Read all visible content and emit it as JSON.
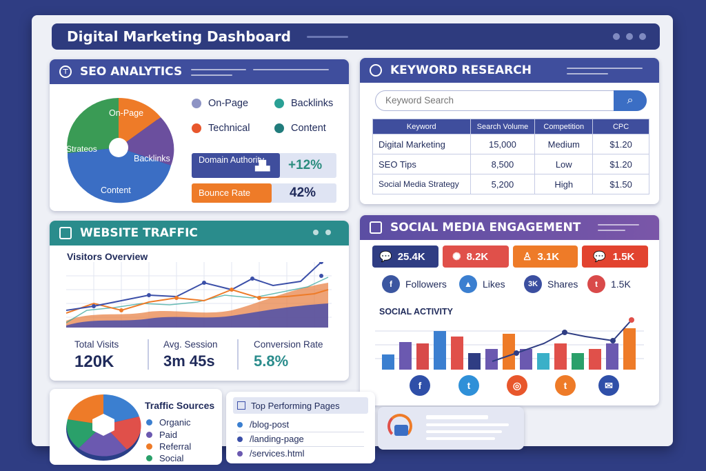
{
  "app": {
    "title": "Digital Marketing Dashboard"
  },
  "seo": {
    "title": "SEO ANALYTICS",
    "pie_labels": [
      "On-Page",
      "Strateos",
      "Backlinks",
      "Content"
    ],
    "legend": [
      {
        "label": "On-Page",
        "color": "#8d93c4"
      },
      {
        "label": "Backlinks",
        "color": "#2aa095"
      },
      {
        "label": "Technical",
        "color": "#e8572c"
      },
      {
        "label": "Content",
        "color": "#217c7c"
      }
    ],
    "domain_label": "Domain Authority",
    "domain_value": "+12%",
    "bounce_label": "Bounce Rate",
    "bounce_value": "42%"
  },
  "keyword": {
    "title": "KEYWORD RESEARCH",
    "search_placeholder": "Keyword Search",
    "headers": [
      "Keyword",
      "Search Volume",
      "Competition",
      "CPC"
    ],
    "rows": [
      [
        "Digital Marketing",
        "15,000",
        "Medium",
        "$1.20"
      ],
      [
        "SEO Tips",
        "8,500",
        "Low",
        "$1.20"
      ],
      [
        "Social Media Strategy",
        "5,200",
        "High",
        "$1.50"
      ]
    ]
  },
  "traffic": {
    "title": "WEBSITE TRAFFIC",
    "chart_title": "Visitors Overview",
    "stats": [
      {
        "label": "Total Visits",
        "value": "120K"
      },
      {
        "label": "Avg. Session",
        "value": "3m 45s"
      },
      {
        "label": "Conversion Rate",
        "value": "5.8%"
      }
    ]
  },
  "social": {
    "title": "SOCIAL MEDIA ENGAGEMENT",
    "pills": [
      {
        "value": "25.4K",
        "color": "#2f3d83"
      },
      {
        "value": "8.2K",
        "color": "#e0504a"
      },
      {
        "value": "3.1K",
        "color": "#ee7b28"
      },
      {
        "value": "1.5K",
        "color": "#e2432f"
      }
    ],
    "stats": [
      {
        "label": "Followers",
        "icon": "f",
        "color": "#3b56a0"
      },
      {
        "label": "Likes",
        "icon": "👍",
        "color": "#3b7fd0"
      },
      {
        "label": "Shares",
        "icon": "3K",
        "color": "#3b4fa0"
      },
      {
        "label": "1.5K",
        "icon": "t",
        "color": "#d94a4a"
      }
    ],
    "activity_title": "SOCIAL ACTIVITY",
    "bar_colors": [
      "#3b7fd0",
      "#6b59b0",
      "#d84a4a",
      "#3b7fd0",
      "#e0504a",
      "#2f3d83",
      "#6b59b0",
      "#ee7b28",
      "#6b59b0",
      "#3bb0c8",
      "#e0504a",
      "#2aa06a",
      "#e0504a",
      "#6b59b0",
      "#ee7b28"
    ],
    "networks": [
      {
        "name": "facebook-icon",
        "glyph": "f",
        "color": "#2f4fa8"
      },
      {
        "name": "twitter-icon",
        "glyph": "t",
        "color": "#2f90d8"
      },
      {
        "name": "instagram-icon",
        "glyph": "◎",
        "color": "#e8572c"
      },
      {
        "name": "twitter-icon",
        "glyph": "t",
        "color": "#ee7b28"
      },
      {
        "name": "mail-icon",
        "glyph": "✉",
        "color": "#2f4fa8"
      }
    ]
  },
  "sources": {
    "title": "Traffic Sources",
    "items": [
      {
        "label": "Organic",
        "color": "#3b7fd0"
      },
      {
        "label": "Paid",
        "color": "#6b59b0"
      },
      {
        "label": "Referral",
        "color": "#ee7b28"
      },
      {
        "label": "Social",
        "color": "#2aa06a"
      }
    ]
  },
  "pages": {
    "title": "Top Performing Pages",
    "items": [
      "/blog-post",
      "/landing-page",
      "/services.html"
    ]
  }
}
